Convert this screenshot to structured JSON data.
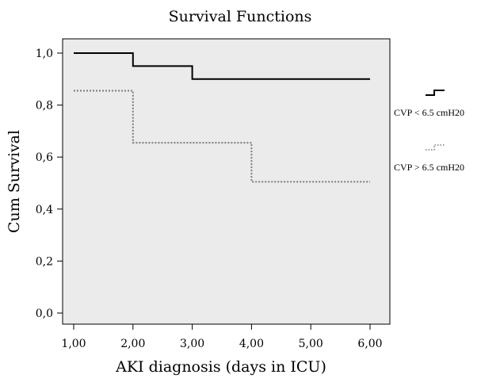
{
  "chart_data": {
    "type": "line",
    "title": "Survival Functions",
    "xlabel": "AKI diagnosis (days in ICU)",
    "ylabel": "Cum Survival",
    "xlim": [
      1,
      6
    ],
    "ylim": [
      0,
      1
    ],
    "x_ticks": [
      1,
      2,
      3,
      4,
      5,
      6
    ],
    "x_tick_labels": [
      "1,00",
      "2,00",
      "3,00",
      "4,00",
      "5,00",
      "6,00"
    ],
    "y_ticks": [
      0,
      0.2,
      0.4,
      0.6,
      0.8,
      1.0
    ],
    "y_tick_labels": [
      "0,0",
      "0,2",
      "0,4",
      "0,6",
      "0,8",
      "1,0"
    ],
    "step": "post",
    "grid": false,
    "background_color": "#ebebeb",
    "legend_position": "right",
    "series": [
      {
        "name": "CVP < 6.5 cmH20",
        "line_style": "solid",
        "color": "#000000",
        "x": [
          1,
          2,
          3,
          6
        ],
        "y": [
          1.0,
          0.95,
          0.9,
          0.9
        ]
      },
      {
        "name": "CVP > 6.5 cmH20",
        "line_style": "dotted",
        "color": "#7a7a7a",
        "x": [
          1,
          2,
          4,
          6
        ],
        "y": [
          0.855,
          0.655,
          0.505,
          0.505
        ]
      }
    ]
  }
}
